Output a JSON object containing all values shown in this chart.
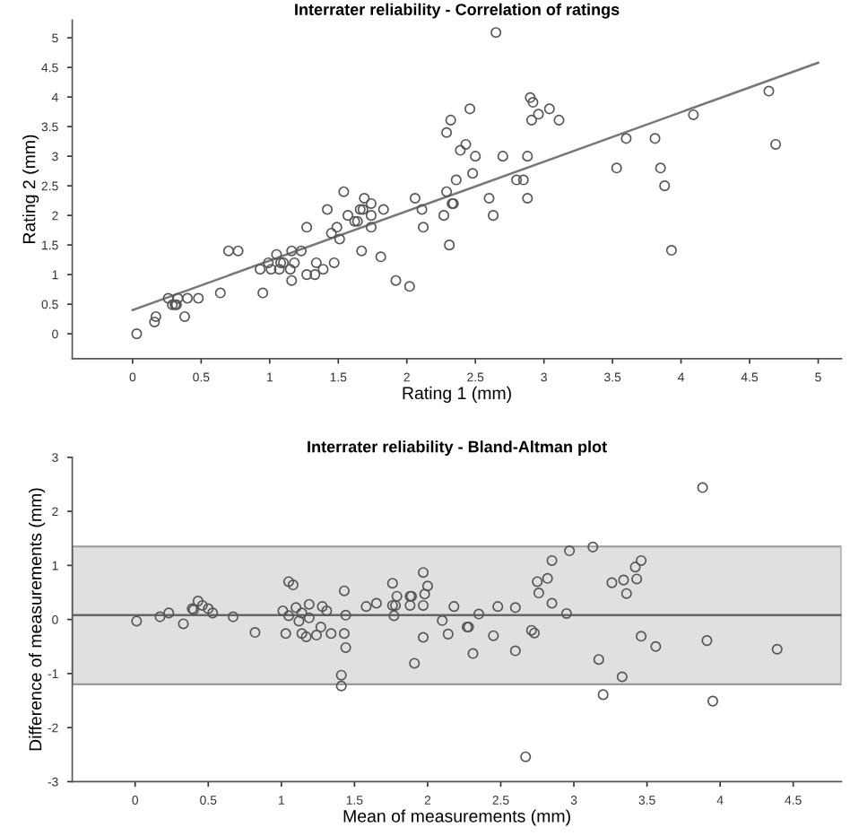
{
  "chart_data": [
    {
      "type": "scatter",
      "title": "Interrater reliability - Correlation of ratings",
      "xlabel": "Rating 1 (mm)",
      "ylabel": "Rating 2 (mm)",
      "grid": false,
      "legend": false,
      "xlim": [
        -0.44,
        5.17
      ],
      "ylim": [
        -0.42,
        5.3
      ],
      "xticks": [
        0,
        0.5,
        1,
        1.5,
        2,
        2.5,
        3,
        3.5,
        4,
        4.5,
        5
      ],
      "yticks": [
        0,
        0.5,
        1,
        1.5,
        2,
        2.5,
        3,
        3.5,
        4,
        4.5,
        5
      ],
      "series": [
        {
          "marker": "circle",
          "color": "#555555",
          "x": [
            0.03,
            0.16,
            0.17,
            0.26,
            0.29,
            0.31,
            0.32,
            0.33,
            0.38,
            0.4,
            0.48,
            0.64,
            0.7,
            0.77,
            0.93,
            0.95,
            0.99,
            1.01,
            1.05,
            1.07,
            1.08,
            1.1,
            1.15,
            1.16,
            1.16,
            1.18,
            1.23,
            1.27,
            1.27,
            1.33,
            1.34,
            1.39,
            1.42,
            1.45,
            1.47,
            1.49,
            1.51,
            1.54,
            1.57,
            1.62,
            1.64,
            1.67,
            1.66,
            1.68,
            1.69,
            1.74,
            1.74,
            1.74,
            1.81,
            1.83,
            1.92,
            2.02,
            2.06,
            2.11,
            2.12,
            2.27,
            2.65,
            2.9,
            2.92,
            2.46,
            3.04,
            2.91,
            2.96,
            3.11,
            2.32,
            2.29,
            2.43,
            2.39,
            2.5,
            2.7,
            2.88,
            2.48,
            2.36,
            2.8,
            2.85,
            2.29,
            2.6,
            2.88,
            2.33,
            2.34,
            2.63,
            2.31,
            3.53,
            3.6,
            3.81,
            3.85,
            3.88,
            3.93,
            4.09,
            4.64,
            4.69
          ],
          "values": [
            0,
            0.2,
            0.29,
            0.6,
            0.49,
            0.49,
            0.49,
            0.6,
            0.29,
            0.6,
            0.6,
            0.69,
            1.4,
            1.4,
            1.09,
            0.69,
            1.2,
            1.09,
            1.34,
            1.09,
            1.2,
            1.2,
            1.09,
            1.4,
            0.9,
            1.2,
            1.4,
            1.8,
            1.0,
            1.0,
            1.2,
            1.09,
            2.1,
            1.7,
            1.2,
            1.8,
            1.6,
            2.4,
            2.0,
            1.9,
            1.9,
            1.4,
            2.1,
            2.1,
            2.29,
            1.8,
            2.2,
            2.0,
            1.3,
            2.1,
            0.9,
            0.8,
            2.29,
            2.1,
            1.8,
            2.0,
            5.09,
            3.99,
            3.91,
            3.8,
            3.8,
            3.61,
            3.71,
            3.61,
            3.61,
            3.4,
            3.2,
            3.1,
            3.0,
            3.0,
            3.0,
            2.71,
            2.6,
            2.6,
            2.6,
            2.4,
            2.29,
            2.29,
            2.2,
            2.2,
            2.0,
            1.5,
            2.8,
            3.3,
            3.3,
            2.8,
            2.5,
            1.41,
            3.7,
            4.1,
            3.2
          ]
        },
        {
          "type": "line",
          "color": "#777777",
          "x": [
            0,
            5
          ],
          "values": [
            0.4,
            4.58
          ]
        }
      ]
    },
    {
      "type": "scatter",
      "title": "Interrater reliability - Bland-Altman plot",
      "xlabel": "Mean of measurements (mm)",
      "ylabel": "Difference of measurements (mm)",
      "grid": false,
      "legend": false,
      "xlim": [
        -0.43,
        4.83
      ],
      "ylim": [
        -3,
        3
      ],
      "xticks": [
        0,
        0.5,
        1,
        1.5,
        2,
        2.5,
        3,
        3.5,
        4,
        4.5
      ],
      "yticks": [
        -3,
        -2,
        -1,
        0,
        1,
        2,
        3
      ],
      "ref_lines": [
        {
          "axis": "y",
          "value": 0.08,
          "color": "#666666"
        }
      ],
      "bands": [
        {
          "axis": "y",
          "from": -1.2,
          "to": 1.35,
          "color": "#e0e0e0"
        }
      ],
      "series": [
        {
          "marker": "circle",
          "color": "#555555",
          "x": [
            0.01,
            0.17,
            0.23,
            0.33,
            0.39,
            0.4,
            0.43,
            0.46,
            0.5,
            0.53,
            0.67,
            0.82,
            1.01,
            1.03,
            1.05,
            1.05,
            1.08,
            1.1,
            1.12,
            1.14,
            1.14,
            1.17,
            1.19,
            1.19,
            1.24,
            1.27,
            1.28,
            1.31,
            1.34,
            1.41,
            1.41,
            1.43,
            1.43,
            1.44,
            1.44,
            1.58,
            1.65,
            1.76,
            1.76,
            1.78,
            1.77,
            1.79,
            1.88,
            1.89,
            1.88,
            1.91,
            1.97,
            1.97,
            1.98,
            1.97,
            2.0,
            2.1,
            2.14,
            2.18,
            2.27,
            2.28,
            2.31,
            2.35,
            2.45,
            2.48,
            2.6,
            2.6,
            2.67,
            2.71,
            2.73,
            2.75,
            2.76,
            2.82,
            2.85,
            2.85,
            2.95,
            2.97,
            3.13,
            3.17,
            3.2,
            3.26,
            3.34,
            3.33,
            3.36,
            3.42,
            3.43,
            3.46,
            3.46,
            3.56,
            3.88,
            3.91,
            3.95,
            4.39
          ],
          "values": [
            -0.03,
            0.05,
            0.12,
            -0.08,
            0.2,
            0.18,
            0.34,
            0.26,
            0.2,
            0.12,
            0.05,
            -0.24,
            0.16,
            -0.26,
            0.7,
            0.07,
            0.64,
            0.22,
            -0.03,
            0.12,
            -0.26,
            -0.32,
            0.28,
            0.03,
            -0.29,
            -0.14,
            0.24,
            0.16,
            -0.26,
            -1.03,
            -1.23,
            -0.26,
            0.53,
            0.08,
            -0.52,
            0.24,
            0.3,
            0.67,
            0.26,
            0.26,
            0.07,
            0.43,
            0.43,
            0.43,
            0.26,
            -0.81,
            -0.33,
            0.87,
            0.47,
            0.26,
            0.62,
            -0.02,
            -0.27,
            0.24,
            -0.14,
            -0.14,
            -0.63,
            0.1,
            -0.3,
            0.24,
            0.22,
            -0.58,
            -2.54,
            -0.2,
            -0.25,
            0.7,
            0.49,
            0.76,
            1.09,
            0.3,
            0.11,
            1.27,
            1.34,
            -0.74,
            -1.39,
            0.68,
            0.73,
            -1.06,
            0.48,
            0.97,
            0.75,
            1.09,
            -0.31,
            -0.5,
            2.44,
            -0.39,
            -1.51,
            -0.55
          ]
        }
      ]
    }
  ]
}
